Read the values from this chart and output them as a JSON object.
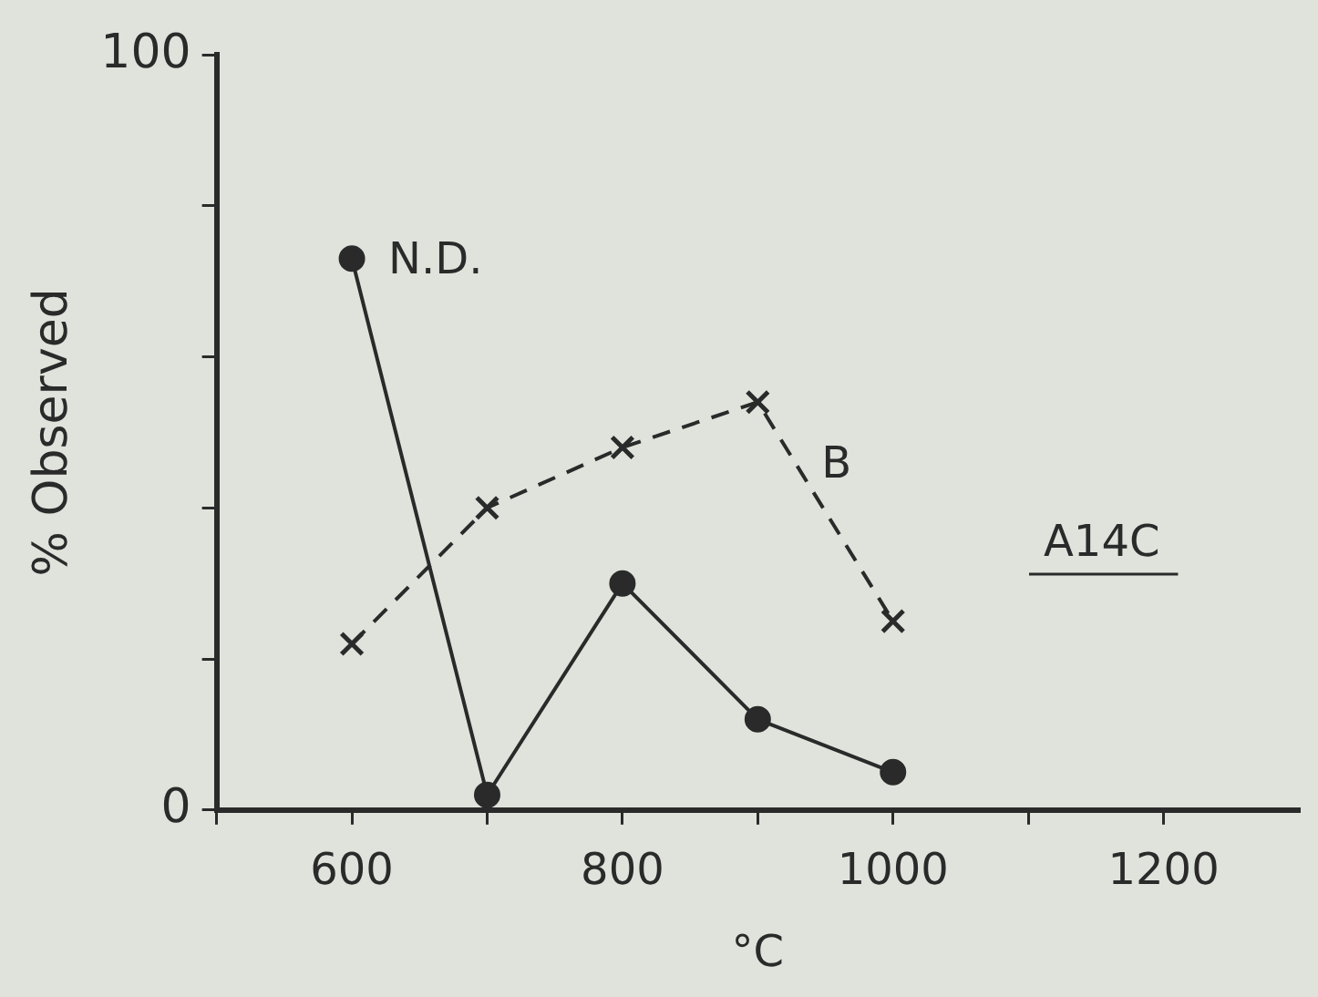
{
  "chart_data": {
    "type": "line",
    "xlabel": "°C",
    "ylabel": "% Observed",
    "annotations": [
      "A14C"
    ],
    "x": [
      600,
      700,
      800,
      900,
      1000
    ],
    "series": [
      {
        "name": "N.D.",
        "color": "#2a2a2a",
        "values": [
          73,
          2,
          30,
          12,
          5
        ],
        "marker": "circle",
        "line_style": "solid"
      },
      {
        "name": "B",
        "color": "#2a2a2a",
        "values": [
          22,
          40,
          48,
          54,
          25
        ],
        "marker": "cross",
        "line_style": "dashed"
      }
    ],
    "xlim": [
      500,
      1300
    ],
    "ylim": [
      0,
      100
    ],
    "xticks": [
      {
        "value": 500,
        "label": null
      },
      600,
      {
        "value": 700,
        "label": null
      },
      800,
      {
        "value": 900,
        "label": null
      },
      1000,
      {
        "value": 1100,
        "label": null
      },
      1200
    ],
    "yticks": [
      0,
      {
        "value": 20,
        "label": null
      },
      {
        "value": 40,
        "label": null
      },
      {
        "value": 60,
        "label": null
      },
      {
        "value": 80,
        "label": null
      },
      100
    ],
    "grid": false,
    "legend": false
  }
}
